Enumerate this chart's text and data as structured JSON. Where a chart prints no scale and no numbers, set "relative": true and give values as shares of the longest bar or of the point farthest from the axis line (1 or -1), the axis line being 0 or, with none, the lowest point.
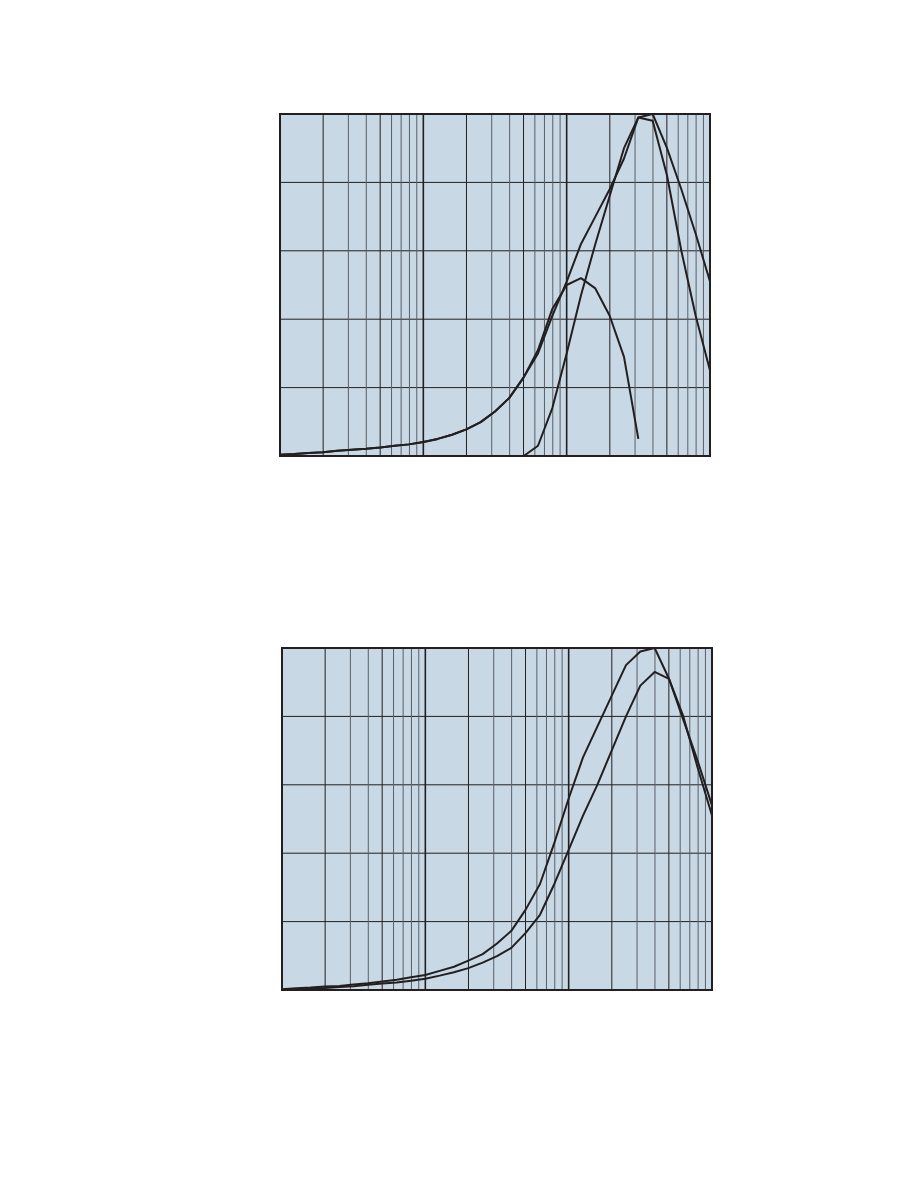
{
  "chart_data": [
    {
      "type": "line",
      "relative": true,
      "grid": true,
      "marker": "none",
      "categories": [
        null,
        null,
        null,
        null,
        null,
        null,
        null,
        null,
        null,
        null,
        null,
        null,
        null,
        null,
        null,
        null,
        null,
        null,
        null,
        null,
        null,
        null,
        null,
        null,
        null,
        null,
        null,
        null,
        null,
        null,
        null
      ],
      "series": [
        {
          "color": "#231f20",
          "values": [
            0.004,
            0.006,
            0.009,
            0.011,
            0.015,
            0.018,
            0.021,
            0.025,
            0.03,
            0.034,
            0.041,
            0.05,
            0.062,
            0.078,
            0.099,
            0.13,
            0.17,
            0.23,
            0.3,
            0.41,
            0.51,
            0.62,
            0.7,
            0.78,
            0.87,
            0.99,
            0.98,
            0.82,
            0.6,
            0.41,
            0.25
          ]
        },
        {
          "color": "#231f20",
          "values": [
            0.004,
            0.006,
            0.009,
            0.011,
            0.015,
            0.018,
            0.021,
            0.025,
            0.03,
            0.034,
            0.041,
            0.05,
            0.062,
            0.078,
            0.099,
            0.13,
            0.17,
            0.23,
            0.31,
            0.43,
            0.5,
            0.52,
            0.49,
            0.41,
            0.29,
            0.05,
            null,
            null,
            null,
            null,
            null
          ]
        },
        {
          "color": "#231f20",
          "values": [
            0,
            0,
            0,
            0,
            0,
            0,
            0,
            0,
            0,
            0,
            0,
            0,
            0,
            0,
            0,
            0,
            0,
            0,
            0.03,
            0.14,
            0.3,
            0.47,
            0.62,
            0.76,
            0.9,
            0.99,
            1,
            0.9,
            0.78,
            0.65,
            0.51
          ]
        }
      ]
    },
    {
      "type": "line",
      "relative": true,
      "grid": true,
      "marker": "none",
      "categories": [
        null,
        null,
        null,
        null,
        null,
        null,
        null,
        null,
        null,
        null,
        null,
        null,
        null,
        null,
        null,
        null,
        null,
        null,
        null,
        null,
        null,
        null,
        null,
        null,
        null,
        null,
        null,
        null,
        null,
        null,
        null
      ],
      "series": [
        {
          "color": "#231f20",
          "values": [
            0.002,
            0.005,
            0.007,
            0.01,
            0.012,
            0.016,
            0.02,
            0.025,
            0.03,
            0.037,
            0.044,
            0.056,
            0.068,
            0.086,
            0.105,
            0.136,
            0.173,
            0.235,
            0.31,
            0.43,
            0.56,
            0.68,
            0.77,
            0.86,
            0.95,
            0.99,
            1,
            0.91,
            0.79,
            0.67,
            0.54
          ]
        },
        {
          "color": "#231f20",
          "values": [
            0.001,
            0.002,
            0.005,
            0.006,
            0.009,
            0.011,
            0.015,
            0.019,
            0.022,
            0.027,
            0.033,
            0.042,
            0.052,
            0.064,
            0.08,
            0.099,
            0.123,
            0.167,
            0.22,
            0.31,
            0.41,
            0.51,
            0.6,
            0.7,
            0.8,
            0.89,
            0.93,
            0.91,
            0.8,
            0.65,
            0.51
          ]
        }
      ]
    }
  ]
}
